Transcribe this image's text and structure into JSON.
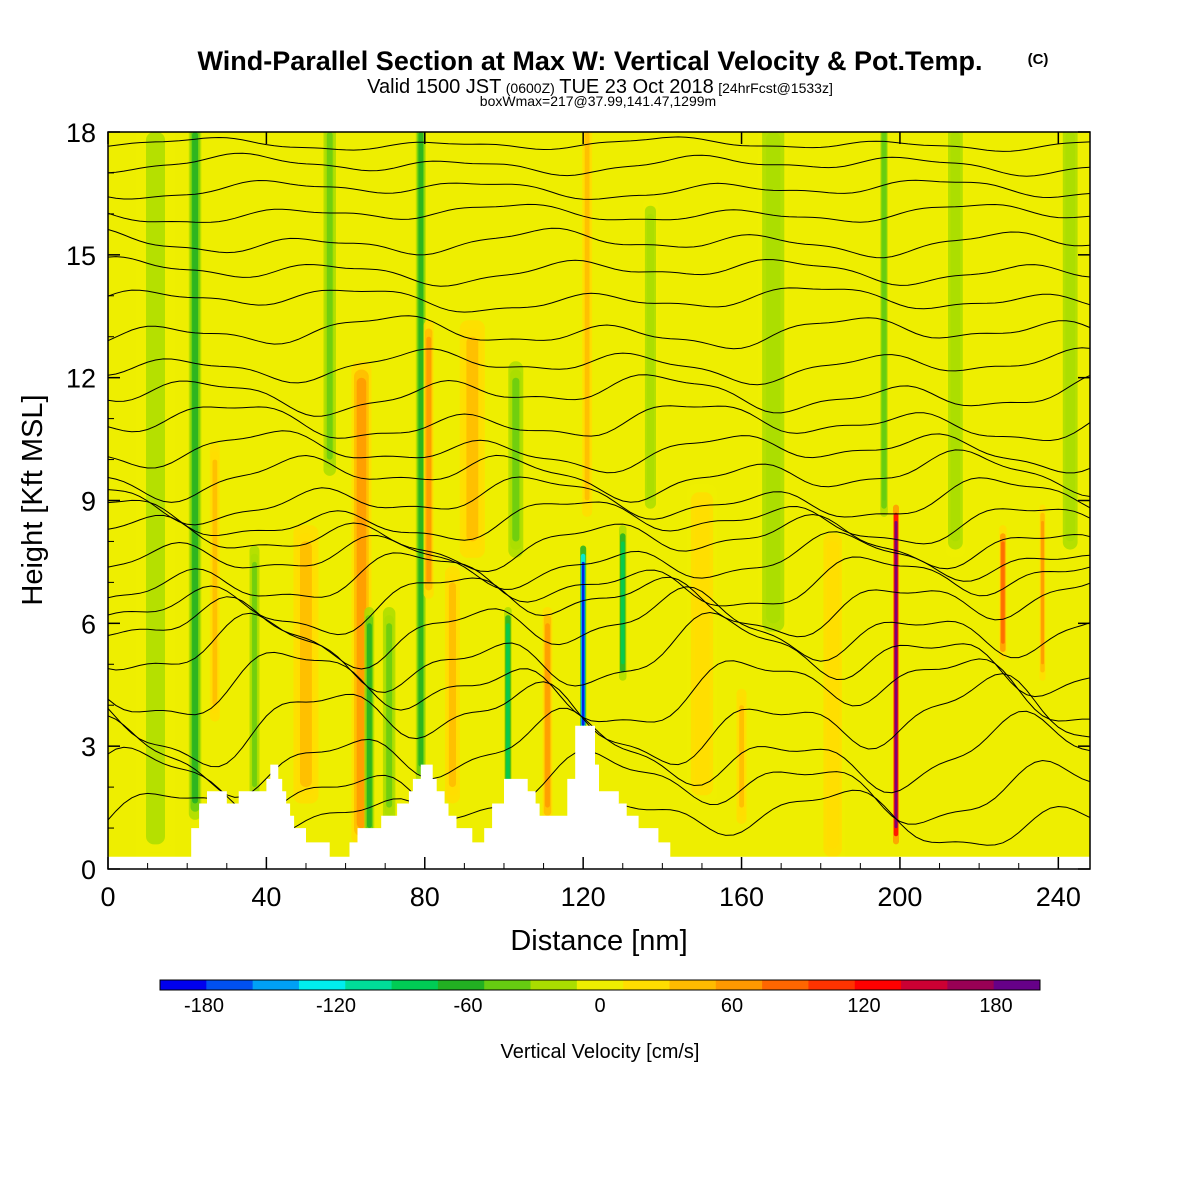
{
  "chart_data": {
    "type": "heatmap",
    "title": "Wind-Parallel Section at Max W: Vertical Velocity & Pot.Temp.",
    "title_mark": "(C)",
    "subtitle": {
      "valid_label": "Valid 1500 JST",
      "utc": "(0600Z)",
      "date": "TUE 23 Oct 2018",
      "forecast": "[24hrFcst@1533z]"
    },
    "box_note": "boxWmax=217@37.99,141.47,1299m",
    "xlabel": "Distance [nm]",
    "ylabel": "Height [Kft MSL]",
    "xlim": [
      0,
      248
    ],
    "ylim": [
      0,
      18
    ],
    "x_ticks": [
      0,
      40,
      80,
      120,
      160,
      200,
      240
    ],
    "y_ticks": [
      0,
      3,
      6,
      9,
      12,
      15,
      18
    ],
    "colorbar": {
      "label": "Vertical Velocity [cm/s]",
      "range": [
        -200,
        200
      ],
      "labels": [
        -180,
        -120,
        -60,
        0,
        60,
        120,
        180
      ],
      "colors": [
        "#0000ee",
        "#0050f0",
        "#00a0f5",
        "#00eeee",
        "#00dd99",
        "#00cc55",
        "#22b022",
        "#66cc11",
        "#aadd00",
        "#eeee00",
        "#ffdd00",
        "#ffbb00",
        "#ff9900",
        "#ff6600",
        "#ff3300",
        "#ff0000",
        "#cc0033",
        "#990055",
        "#660088"
      ]
    },
    "terrain_profile": [
      [
        0,
        0.3
      ],
      [
        21,
        0.3
      ],
      [
        21,
        1.0
      ],
      [
        23,
        1.0
      ],
      [
        23,
        1.6
      ],
      [
        25,
        1.6
      ],
      [
        25,
        1.9
      ],
      [
        30,
        1.9
      ],
      [
        30,
        1.6
      ],
      [
        33,
        1.6
      ],
      [
        33,
        1.9
      ],
      [
        40,
        1.9
      ],
      [
        40,
        2.2
      ],
      [
        41,
        2.2
      ],
      [
        41,
        2.55
      ],
      [
        43,
        2.55
      ],
      [
        43,
        2.2
      ],
      [
        44,
        2.2
      ],
      [
        44,
        1.9
      ],
      [
        45,
        1.9
      ],
      [
        45,
        1.6
      ],
      [
        46,
        1.6
      ],
      [
        46,
        1.3
      ],
      [
        47,
        1.3
      ],
      [
        47,
        1.0
      ],
      [
        50,
        1.0
      ],
      [
        50,
        0.65
      ],
      [
        56,
        0.65
      ],
      [
        56,
        0.3
      ],
      [
        61,
        0.3
      ],
      [
        61,
        0.65
      ],
      [
        63,
        0.65
      ],
      [
        63,
        1.0
      ],
      [
        69,
        1.0
      ],
      [
        69,
        1.3
      ],
      [
        73,
        1.3
      ],
      [
        73,
        1.6
      ],
      [
        76,
        1.6
      ],
      [
        76,
        1.9
      ],
      [
        77,
        1.9
      ],
      [
        77,
        2.2
      ],
      [
        79,
        2.2
      ],
      [
        79,
        2.55
      ],
      [
        82,
        2.55
      ],
      [
        82,
        2.2
      ],
      [
        83,
        2.2
      ],
      [
        83,
        1.9
      ],
      [
        85,
        1.9
      ],
      [
        85,
        1.6
      ],
      [
        86,
        1.6
      ],
      [
        86,
        1.3
      ],
      [
        88,
        1.3
      ],
      [
        88,
        1.0
      ],
      [
        92,
        1.0
      ],
      [
        92,
        0.65
      ],
      [
        95,
        0.65
      ],
      [
        95,
        1.0
      ],
      [
        97,
        1.0
      ],
      [
        97,
        1.6
      ],
      [
        100,
        1.6
      ],
      [
        100,
        2.2
      ],
      [
        106,
        2.2
      ],
      [
        106,
        1.9
      ],
      [
        108,
        1.9
      ],
      [
        108,
        1.6
      ],
      [
        109,
        1.6
      ],
      [
        109,
        1.3
      ],
      [
        116,
        1.3
      ],
      [
        116,
        2.2
      ],
      [
        118,
        2.2
      ],
      [
        118,
        3.5
      ],
      [
        123,
        3.5
      ],
      [
        123,
        2.55
      ],
      [
        124,
        2.55
      ],
      [
        124,
        1.9
      ],
      [
        129,
        1.9
      ],
      [
        129,
        1.6
      ],
      [
        131,
        1.6
      ],
      [
        131,
        1.3
      ],
      [
        134,
        1.3
      ],
      [
        134,
        1.0
      ],
      [
        139,
        1.0
      ],
      [
        139,
        0.65
      ],
      [
        142,
        0.65
      ],
      [
        142,
        0.3
      ],
      [
        248,
        0.3
      ]
    ],
    "w_features": [
      {
        "x": 12,
        "z0": 0.6,
        "z1": 18,
        "w": -15,
        "width": 8
      },
      {
        "x": 22,
        "z0": 1.6,
        "z1": 18,
        "w": -55,
        "width": 2.5
      },
      {
        "x": 27,
        "z0": 4,
        "z1": 10,
        "w": 45,
        "width": 2
      },
      {
        "x": 37,
        "z0": 2,
        "z1": 7.5,
        "w": -45,
        "width": 2
      },
      {
        "x": 50,
        "z0": 2,
        "z1": 8,
        "w": 45,
        "width": 5
      },
      {
        "x": 56,
        "z0": 10,
        "z1": 18,
        "w": -40,
        "width": 2.5
      },
      {
        "x": 64,
        "z0": 1,
        "z1": 12,
        "w": 65,
        "width": 4
      },
      {
        "x": 66,
        "z0": 1,
        "z1": 6,
        "w": -60,
        "width": 2
      },
      {
        "x": 71,
        "z0": 1.5,
        "z1": 6,
        "w": -40,
        "width": 2.5
      },
      {
        "x": 79,
        "z0": 2.5,
        "z1": 18,
        "w": -65,
        "width": 2
      },
      {
        "x": 81,
        "z0": 7,
        "z1": 13,
        "w": 60,
        "width": 2
      },
      {
        "x": 87,
        "z0": 2,
        "z1": 7,
        "w": 40,
        "width": 3
      },
      {
        "x": 92,
        "z0": 8,
        "z1": 13,
        "w": 35,
        "width": 5
      },
      {
        "x": 101,
        "z0": 1,
        "z1": 6,
        "w": -80,
        "width": 1.5
      },
      {
        "x": 103,
        "z0": 8,
        "z1": 12,
        "w": -35,
        "width": 3
      },
      {
        "x": 111,
        "z0": 1.5,
        "z1": 6,
        "w": 60,
        "width": 2
      },
      {
        "x": 120,
        "z0": 3.5,
        "z1": 7.5,
        "w": -180,
        "width": 1.2
      },
      {
        "x": 121,
        "z0": 9,
        "z1": 18,
        "w": 45,
        "width": 2
      },
      {
        "x": 130,
        "z0": 5,
        "z1": 8,
        "w": -90,
        "width": 1.5
      },
      {
        "x": 137,
        "z0": 9,
        "z1": 16,
        "w": -30,
        "width": 3
      },
      {
        "x": 150,
        "z0": 2,
        "z1": 9,
        "w": 25,
        "width": 6
      },
      {
        "x": 160,
        "z0": 1.5,
        "z1": 4,
        "w": 35,
        "width": 2
      },
      {
        "x": 168,
        "z0": 6,
        "z1": 18,
        "w": -25,
        "width": 6
      },
      {
        "x": 183,
        "z0": 0.5,
        "z1": 8,
        "w": 20,
        "width": 5
      },
      {
        "x": 196,
        "z0": 9,
        "z1": 18,
        "w": -50,
        "width": 1.5
      },
      {
        "x": 199,
        "z0": 1,
        "z1": 8.5,
        "w": 190,
        "width": 1.2
      },
      {
        "x": 214,
        "z0": 8,
        "z1": 18,
        "w": -30,
        "width": 4
      },
      {
        "x": 226,
        "z0": 5.5,
        "z1": 8,
        "w": 80,
        "width": 1.5
      },
      {
        "x": 236,
        "z0": 5,
        "z1": 8.5,
        "w": 70,
        "width": 1.2
      },
      {
        "x": 243,
        "z0": 8,
        "z1": 18,
        "w": -25,
        "width": 4
      }
    ],
    "theta_series": [
      {
        "base": 1.2,
        "amp": 0.5
      },
      {
        "base": 2.0,
        "amp": 0.55
      },
      {
        "base": 2.8,
        "amp": 0.6
      },
      {
        "base": 3.6,
        "amp": 0.65
      },
      {
        "base": 4.4,
        "amp": 0.6
      },
      {
        "base": 5.2,
        "amp": 0.6
      },
      {
        "base": 5.9,
        "amp": 0.55
      },
      {
        "base": 6.5,
        "amp": 0.5
      },
      {
        "base": 7.0,
        "amp": 0.45
      },
      {
        "base": 7.5,
        "amp": 0.4
      },
      {
        "base": 8.0,
        "amp": 0.4
      },
      {
        "base": 8.5,
        "amp": 0.35
      },
      {
        "base": 9.0,
        "amp": 0.35
      },
      {
        "base": 9.6,
        "amp": 0.35
      },
      {
        "base": 10.2,
        "amp": 0.3
      },
      {
        "base": 10.9,
        "amp": 0.3
      },
      {
        "base": 11.6,
        "amp": 0.3
      },
      {
        "base": 12.3,
        "amp": 0.25
      },
      {
        "base": 13.1,
        "amp": 0.25
      },
      {
        "base": 13.9,
        "amp": 0.2
      },
      {
        "base": 14.6,
        "amp": 0.2
      },
      {
        "base": 15.3,
        "amp": 0.2
      },
      {
        "base": 16.0,
        "amp": 0.15
      },
      {
        "base": 16.6,
        "amp": 0.15
      },
      {
        "base": 17.2,
        "amp": 0.15
      },
      {
        "base": 17.7,
        "amp": 0.1
      }
    ]
  }
}
